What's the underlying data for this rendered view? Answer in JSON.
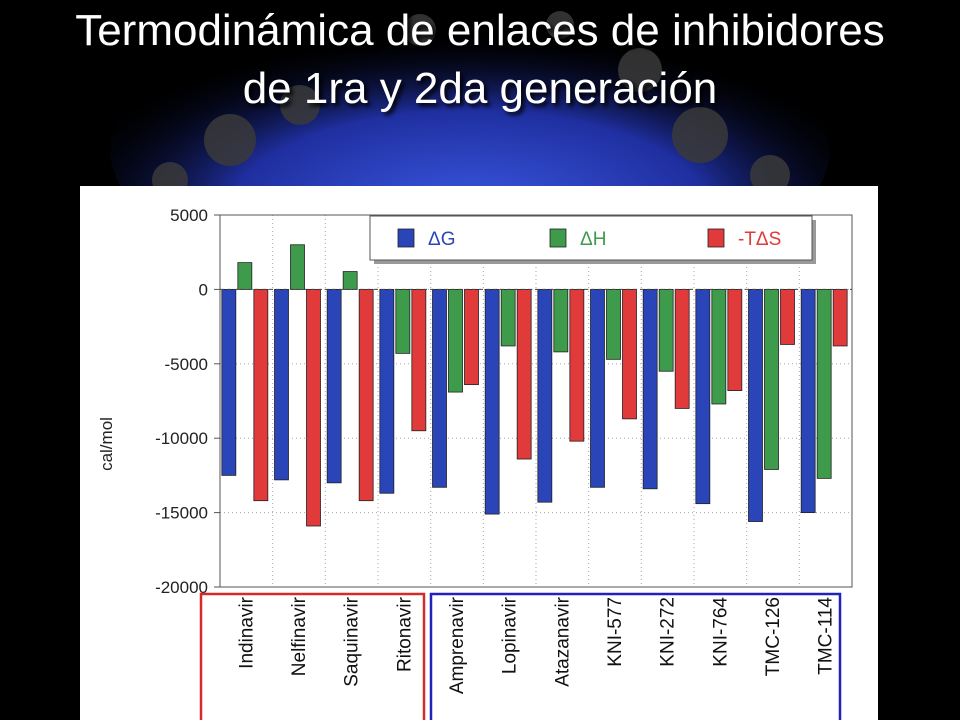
{
  "slide": {
    "title": "Termodinámica de enlaces de inhibidores de 1ra y 2da generación"
  },
  "colors": {
    "dG": "#2a45b8",
    "dH": "#3e9b4c",
    "TdS": "#e03a3a",
    "first_gen_box": "#d42a2a",
    "second_gen_box": "#2222bb"
  },
  "chart_data": {
    "type": "bar",
    "title": "",
    "xlabel": "",
    "ylabel": "cal/mol",
    "ylim": [
      -20000,
      5000
    ],
    "yticks": [
      5000,
      0,
      -5000,
      -10000,
      -15000,
      -20000
    ],
    "ytick_labels": [
      "5000",
      "0",
      "-5000",
      "-10000",
      "-15000",
      "-20000"
    ],
    "grid": true,
    "legend_position": "top",
    "categories": [
      "Indinavir",
      "Nelfinavir",
      "Saquinavir",
      "Ritonavir",
      "Amprenavir",
      "Lopinavir",
      "Atazanavir",
      "KNI-577",
      "KNI-272",
      "KNI-764",
      "TMC-126",
      "TMC-114"
    ],
    "series": [
      {
        "name": "ΔG",
        "color": "#2a45b8",
        "values": [
          -12500,
          -12800,
          -13000,
          -13700,
          -13300,
          -15100,
          -14300,
          -13300,
          -13400,
          -14400,
          -15600,
          -15000
        ]
      },
      {
        "name": "ΔH",
        "color": "#3e9b4c",
        "values": [
          1800,
          3000,
          1200,
          -4300,
          -6900,
          -3800,
          -4200,
          -4700,
          -5500,
          -7700,
          -12100,
          -12700
        ]
      },
      {
        "name": "-TΔS",
        "color": "#e03a3a",
        "values": [
          -14200,
          -15900,
          -14200,
          -9500,
          -6400,
          -11400,
          -10200,
          -8700,
          -8000,
          -6800,
          -3700,
          -3800
        ]
      }
    ],
    "groups": [
      {
        "categories": [
          "Indinavir",
          "Nelfinavir",
          "Saquinavir",
          "Ritonavir"
        ],
        "box_color": "#d42a2a"
      },
      {
        "categories": [
          "Amprenavir",
          "Lopinavir",
          "Atazanavir",
          "KNI-577",
          "KNI-272",
          "KNI-764",
          "TMC-126",
          "TMC-114"
        ],
        "box_color": "#2222bb"
      }
    ]
  }
}
